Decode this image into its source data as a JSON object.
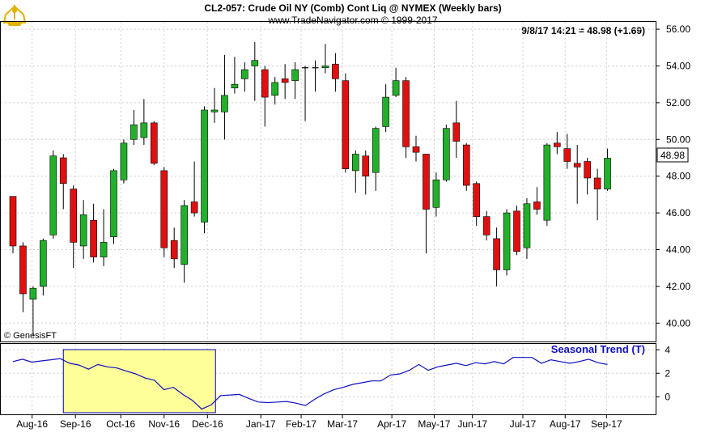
{
  "header": {
    "title": "CL2-057:  Crude Oil NY (Comb) Cont Liq @ NYMEX  (Weekly bars)",
    "subtitle": "www.TradeNavigator.com © 1999-2017",
    "quote": "9/8/17 14:21 = 48.98 (+1.69)",
    "copyright": "© GenesisFT",
    "last_price_tag": "48.98",
    "logo": "trade-navigator-logo"
  },
  "colors": {
    "up": "#22b02a",
    "down": "#e01010",
    "wick": "#000000",
    "grid": "#cfcfcf",
    "seasonal_line": "#1010c0",
    "highlight": "#ffff99",
    "highlight_border": "#0000c0",
    "logo": "#e0b000"
  },
  "chart_data": [
    {
      "type": "candlestick",
      "title": "CL2-057:  Crude Oil NY (Comb) Cont Liq @ NYMEX  (Weekly bars)",
      "ylim": [
        39,
        56.4
      ],
      "y_ticks": [
        "56.00",
        "54.00",
        "52.00",
        "50.00",
        "48.00",
        "46.00",
        "44.00",
        "42.00",
        "40.00"
      ],
      "x_labels": [
        "Aug-16",
        "Sep-16",
        "Oct-16",
        "Nov-16",
        "Dec-16",
        "Jan-17",
        "Feb-17",
        "Mar-17",
        "Apr-17",
        "May-17",
        "Jun-17",
        "Jul-17",
        "Aug-17",
        "Sep-17"
      ],
      "candles": [
        {
          "o": 46.9,
          "h": 46.9,
          "l": 43.8,
          "c": 44.2
        },
        {
          "o": 44.2,
          "h": 44.4,
          "l": 40.6,
          "c": 41.6
        },
        {
          "o": 41.3,
          "h": 42.0,
          "l": 39.3,
          "c": 41.9
        },
        {
          "o": 42.0,
          "h": 44.6,
          "l": 41.5,
          "c": 44.5
        },
        {
          "o": 44.8,
          "h": 49.4,
          "l": 44.6,
          "c": 49.1
        },
        {
          "o": 49.0,
          "h": 49.2,
          "l": 46.2,
          "c": 47.6
        },
        {
          "o": 47.3,
          "h": 47.5,
          "l": 43.0,
          "c": 44.4
        },
        {
          "o": 44.2,
          "h": 46.7,
          "l": 43.5,
          "c": 45.9
        },
        {
          "o": 45.6,
          "h": 46.5,
          "l": 43.3,
          "c": 43.6
        },
        {
          "o": 43.6,
          "h": 46.2,
          "l": 43.1,
          "c": 44.4
        },
        {
          "o": 44.7,
          "h": 48.4,
          "l": 44.3,
          "c": 48.3
        },
        {
          "o": 47.8,
          "h": 50.0,
          "l": 47.6,
          "c": 49.8
        },
        {
          "o": 50.0,
          "h": 51.6,
          "l": 49.7,
          "c": 50.8
        },
        {
          "o": 50.1,
          "h": 52.2,
          "l": 49.7,
          "c": 50.9
        },
        {
          "o": 50.9,
          "h": 51.0,
          "l": 48.6,
          "c": 48.7
        },
        {
          "o": 48.3,
          "h": 48.5,
          "l": 43.6,
          "c": 44.1
        },
        {
          "o": 44.5,
          "h": 45.2,
          "l": 43.0,
          "c": 43.5
        },
        {
          "o": 43.2,
          "h": 46.7,
          "l": 42.2,
          "c": 46.4
        },
        {
          "o": 46.6,
          "h": 48.8,
          "l": 45.8,
          "c": 46.0
        },
        {
          "o": 45.5,
          "h": 51.8,
          "l": 44.9,
          "c": 51.6
        },
        {
          "o": 51.5,
          "h": 52.8,
          "l": 50.9,
          "c": 51.6
        },
        {
          "o": 51.5,
          "h": 54.6,
          "l": 50.0,
          "c": 52.4
        },
        {
          "o": 52.8,
          "h": 54.5,
          "l": 52.5,
          "c": 53.0
        },
        {
          "o": 53.3,
          "h": 54.2,
          "l": 52.6,
          "c": 53.8
        },
        {
          "o": 54.0,
          "h": 55.3,
          "l": 52.1,
          "c": 54.3
        },
        {
          "o": 53.8,
          "h": 54.0,
          "l": 50.7,
          "c": 52.3
        },
        {
          "o": 52.4,
          "h": 53.4,
          "l": 51.9,
          "c": 53.1
        },
        {
          "o": 53.3,
          "h": 54.1,
          "l": 52.2,
          "c": 53.1
        },
        {
          "o": 53.2,
          "h": 54.2,
          "l": 52.2,
          "c": 53.8
        },
        {
          "o": 53.9,
          "h": 54.0,
          "l": 51.0,
          "c": 53.9
        },
        {
          "o": 53.9,
          "h": 54.3,
          "l": 52.6,
          "c": 53.9
        },
        {
          "o": 53.9,
          "h": 55.2,
          "l": 53.6,
          "c": 54.0
        },
        {
          "o": 54.1,
          "h": 54.7,
          "l": 52.6,
          "c": 53.3
        },
        {
          "o": 53.2,
          "h": 53.6,
          "l": 48.2,
          "c": 48.4
        },
        {
          "o": 48.3,
          "h": 49.4,
          "l": 47.1,
          "c": 49.2
        },
        {
          "o": 49.1,
          "h": 49.4,
          "l": 47.0,
          "c": 48.0
        },
        {
          "o": 48.2,
          "h": 50.7,
          "l": 47.2,
          "c": 50.6
        },
        {
          "o": 50.7,
          "h": 53.0,
          "l": 50.4,
          "c": 52.3
        },
        {
          "o": 52.4,
          "h": 53.9,
          "l": 52.3,
          "c": 53.2
        },
        {
          "o": 53.2,
          "h": 53.4,
          "l": 49.0,
          "c": 49.6
        },
        {
          "o": 49.6,
          "h": 50.2,
          "l": 48.8,
          "c": 49.3
        },
        {
          "o": 49.2,
          "h": 49.2,
          "l": 43.8,
          "c": 46.2
        },
        {
          "o": 46.3,
          "h": 48.2,
          "l": 45.8,
          "c": 47.8
        },
        {
          "o": 47.8,
          "h": 50.8,
          "l": 47.7,
          "c": 50.6
        },
        {
          "o": 50.9,
          "h": 52.1,
          "l": 49.0,
          "c": 49.9
        },
        {
          "o": 49.7,
          "h": 49.8,
          "l": 47.2,
          "c": 47.5
        },
        {
          "o": 47.6,
          "h": 47.7,
          "l": 45.3,
          "c": 45.8
        },
        {
          "o": 45.8,
          "h": 46.1,
          "l": 44.5,
          "c": 44.8
        },
        {
          "o": 44.6,
          "h": 45.2,
          "l": 42.0,
          "c": 42.9
        },
        {
          "o": 42.9,
          "h": 46.2,
          "l": 42.6,
          "c": 46.0
        },
        {
          "o": 46.1,
          "h": 46.4,
          "l": 43.7,
          "c": 43.9
        },
        {
          "o": 44.1,
          "h": 46.8,
          "l": 43.5,
          "c": 46.5
        },
        {
          "o": 46.6,
          "h": 47.4,
          "l": 45.9,
          "c": 46.2
        },
        {
          "o": 45.6,
          "h": 49.8,
          "l": 45.3,
          "c": 49.7
        },
        {
          "o": 49.8,
          "h": 50.4,
          "l": 49.2,
          "c": 49.6
        },
        {
          "o": 49.5,
          "h": 50.3,
          "l": 48.4,
          "c": 48.8
        },
        {
          "o": 48.7,
          "h": 49.7,
          "l": 46.5,
          "c": 48.5
        },
        {
          "o": 48.8,
          "h": 49.0,
          "l": 47.0,
          "c": 47.9
        },
        {
          "o": 47.9,
          "h": 48.4,
          "l": 45.6,
          "c": 47.3
        },
        {
          "o": 47.3,
          "h": 49.5,
          "l": 47.2,
          "c": 48.98
        }
      ]
    },
    {
      "type": "line",
      "label": "Seasonal Trend (T)",
      "ylim": [
        -1.5,
        4.5
      ],
      "y_ticks": [
        "4",
        "2",
        "0"
      ],
      "highlight_range": [
        5.5,
        20.6
      ],
      "values": [
        3.0,
        3.2,
        2.95,
        3.05,
        3.15,
        3.25,
        2.85,
        2.7,
        2.35,
        2.75,
        2.55,
        2.45,
        2.2,
        1.95,
        1.6,
        1.4,
        0.6,
        0.8,
        0.2,
        -0.3,
        -1.05,
        -0.7,
        0.1,
        0.15,
        0.2,
        -0.15,
        -0.45,
        -0.5,
        -0.45,
        -0.4,
        -0.55,
        -0.75,
        -0.2,
        0.25,
        0.6,
        0.8,
        1.05,
        1.2,
        1.35,
        1.35,
        1.85,
        1.95,
        2.25,
        2.75,
        2.25,
        2.55,
        2.7,
        2.85,
        2.65,
        2.9,
        2.8,
        3.0,
        2.8,
        3.35,
        3.35,
        3.35,
        2.85,
        3.15,
        3.0,
        2.85,
        3.0,
        3.2,
        2.9,
        2.75
      ]
    }
  ]
}
